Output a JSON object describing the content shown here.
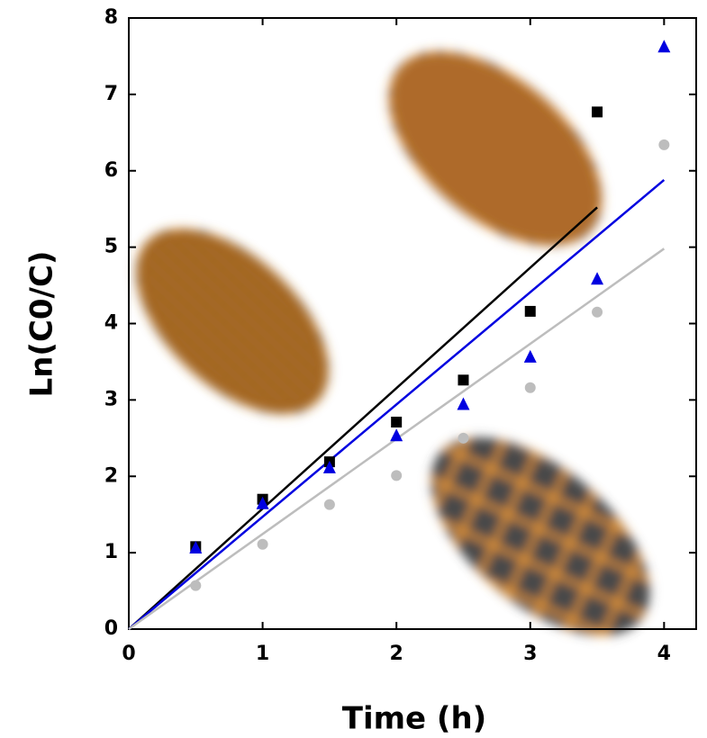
{
  "chart_data": {
    "type": "scatter",
    "x_label": "Time (h)",
    "y_label": "Ln(C0/C)",
    "xlim": [
      0,
      4.24
    ],
    "ylim": [
      0,
      8
    ],
    "xticks": [
      0,
      1,
      2,
      3,
      4
    ],
    "yticks": [
      0,
      1,
      2,
      3,
      4,
      5,
      6,
      7,
      8
    ],
    "series": [
      {
        "color": "#000000",
        "marker": "square",
        "x": [
          0.5,
          1,
          1.5,
          2,
          2.5,
          3,
          3.5
        ],
        "values": [
          1.08,
          1.7,
          2.19,
          2.71,
          3.26,
          4.16,
          6.77
        ]
      },
      {
        "color": "#0000e0",
        "marker": "triangle",
        "x": [
          0.5,
          1,
          1.5,
          2,
          2.5,
          3,
          3.5,
          4
        ],
        "values": [
          1.06,
          1.64,
          2.11,
          2.53,
          2.94,
          3.56,
          4.58,
          7.62
        ]
      },
      {
        "color": "#bdbdbd",
        "marker": "circle",
        "x": [
          0.5,
          1,
          1.5,
          2,
          2.5,
          3,
          3.5,
          4
        ],
        "values": [
          0.57,
          1.11,
          1.63,
          2.01,
          2.5,
          3.16,
          4.15,
          6.34
        ]
      }
    ],
    "fits": [
      {
        "color": "#000000",
        "x": [
          0,
          3.5
        ],
        "values": [
          0,
          5.52
        ]
      },
      {
        "color": "#0000e0",
        "x": [
          0,
          4
        ],
        "values": [
          0,
          5.88
        ]
      },
      {
        "color": "#bdbdbd",
        "x": [
          0,
          4
        ],
        "values": [
          0,
          4.98
        ]
      }
    ]
  }
}
